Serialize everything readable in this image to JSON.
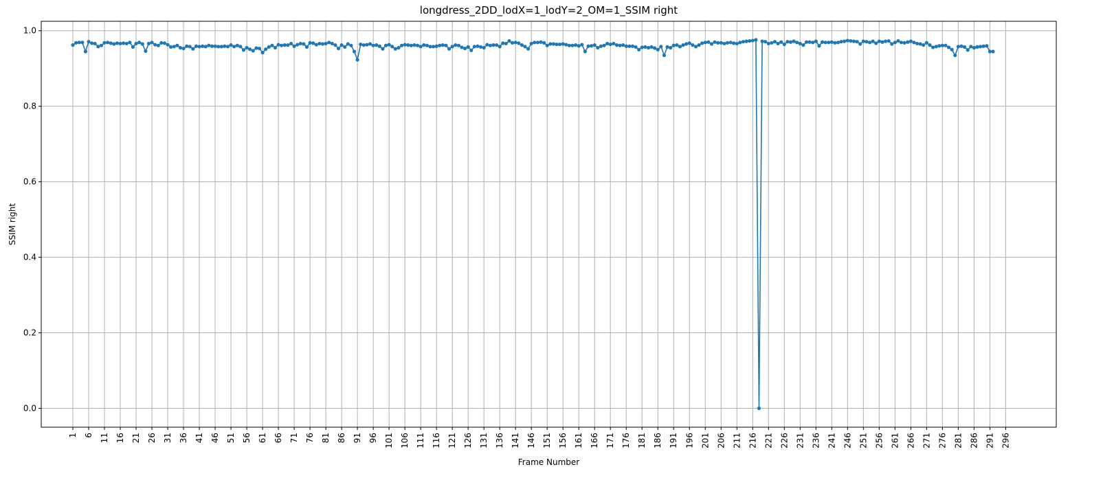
{
  "chart_data": {
    "type": "line",
    "title": "longdress_2DD_lodX=1_lodY=2_OM=1_SSIM right",
    "xlabel": "Frame Number",
    "ylabel": "SSIM right",
    "xlim": [
      -9.0,
      312.0
    ],
    "ylim": [
      -0.05,
      1.025
    ],
    "x_ticks": [
      1,
      6,
      11,
      16,
      21,
      26,
      31,
      36,
      41,
      46,
      51,
      56,
      61,
      66,
      71,
      76,
      81,
      86,
      91,
      96,
      101,
      106,
      111,
      116,
      121,
      126,
      131,
      136,
      141,
      146,
      151,
      156,
      161,
      166,
      171,
      176,
      181,
      186,
      191,
      196,
      201,
      206,
      211,
      216,
      221,
      226,
      231,
      236,
      241,
      246,
      251,
      256,
      261,
      266,
      271,
      276,
      281,
      286,
      291,
      296
    ],
    "y_ticks": [
      0.0,
      0.2,
      0.4,
      0.6,
      0.8,
      1.0
    ],
    "y_tick_labels": [
      "0.0",
      "0.2",
      "0.4",
      "0.6",
      "0.8",
      "1.0"
    ],
    "grid": true,
    "series": [
      {
        "color": "#1f77b4",
        "marker": "circle",
        "x_start": 1,
        "x_step": 1,
        "values": [
          0.962,
          0.968,
          0.969,
          0.969,
          0.945,
          0.971,
          0.967,
          0.966,
          0.958,
          0.961,
          0.968,
          0.969,
          0.967,
          0.965,
          0.967,
          0.966,
          0.967,
          0.966,
          0.969,
          0.957,
          0.966,
          0.969,
          0.965,
          0.946,
          0.966,
          0.969,
          0.963,
          0.961,
          0.968,
          0.967,
          0.963,
          0.957,
          0.958,
          0.961,
          0.955,
          0.953,
          0.959,
          0.958,
          0.952,
          0.959,
          0.958,
          0.959,
          0.958,
          0.961,
          0.959,
          0.959,
          0.958,
          0.958,
          0.959,
          0.958,
          0.962,
          0.958,
          0.961,
          0.958,
          0.949,
          0.955,
          0.951,
          0.947,
          0.954,
          0.953,
          0.942,
          0.951,
          0.957,
          0.961,
          0.955,
          0.963,
          0.961,
          0.962,
          0.962,
          0.966,
          0.959,
          0.963,
          0.966,
          0.965,
          0.957,
          0.968,
          0.967,
          0.963,
          0.966,
          0.965,
          0.966,
          0.969,
          0.966,
          0.962,
          0.953,
          0.962,
          0.957,
          0.965,
          0.961,
          0.945,
          0.923,
          0.964,
          0.962,
          0.963,
          0.965,
          0.961,
          0.962,
          0.959,
          0.952,
          0.961,
          0.963,
          0.958,
          0.952,
          0.955,
          0.961,
          0.963,
          0.962,
          0.961,
          0.962,
          0.961,
          0.958,
          0.962,
          0.961,
          0.958,
          0.958,
          0.959,
          0.961,
          0.962,
          0.961,
          0.952,
          0.958,
          0.962,
          0.961,
          0.956,
          0.953,
          0.957,
          0.948,
          0.958,
          0.959,
          0.957,
          0.955,
          0.963,
          0.961,
          0.962,
          0.962,
          0.958,
          0.967,
          0.966,
          0.973,
          0.968,
          0.969,
          0.967,
          0.962,
          0.958,
          0.952,
          0.966,
          0.969,
          0.969,
          0.97,
          0.968,
          0.961,
          0.965,
          0.965,
          0.964,
          0.964,
          0.965,
          0.963,
          0.961,
          0.961,
          0.962,
          0.96,
          0.963,
          0.945,
          0.959,
          0.96,
          0.962,
          0.955,
          0.959,
          0.961,
          0.966,
          0.964,
          0.966,
          0.962,
          0.961,
          0.962,
          0.959,
          0.959,
          0.959,
          0.957,
          0.95,
          0.956,
          0.957,
          0.955,
          0.957,
          0.954,
          0.95,
          0.958,
          0.935,
          0.957,
          0.955,
          0.961,
          0.962,
          0.958,
          0.962,
          0.965,
          0.967,
          0.962,
          0.958,
          0.962,
          0.967,
          0.969,
          0.97,
          0.965,
          0.97,
          0.968,
          0.968,
          0.966,
          0.968,
          0.969,
          0.967,
          0.966,
          0.969,
          0.971,
          0.972,
          0.973,
          0.974,
          0.976,
          0.0,
          0.972,
          0.971,
          0.966,
          0.968,
          0.971,
          0.966,
          0.97,
          0.964,
          0.971,
          0.97,
          0.972,
          0.969,
          0.966,
          0.962,
          0.97,
          0.97,
          0.969,
          0.972,
          0.96,
          0.97,
          0.969,
          0.969,
          0.97,
          0.968,
          0.969,
          0.971,
          0.972,
          0.974,
          0.973,
          0.972,
          0.971,
          0.965,
          0.972,
          0.971,
          0.969,
          0.972,
          0.967,
          0.972,
          0.97,
          0.972,
          0.973,
          0.965,
          0.969,
          0.973,
          0.969,
          0.968,
          0.97,
          0.972,
          0.969,
          0.966,
          0.965,
          0.962,
          0.968,
          0.962,
          0.956,
          0.958,
          0.96,
          0.961,
          0.961,
          0.956,
          0.95,
          0.935,
          0.958,
          0.959,
          0.957,
          0.949,
          0.958,
          0.955,
          0.957,
          0.958,
          0.959,
          0.96,
          0.945,
          0.945
        ]
      }
    ]
  }
}
